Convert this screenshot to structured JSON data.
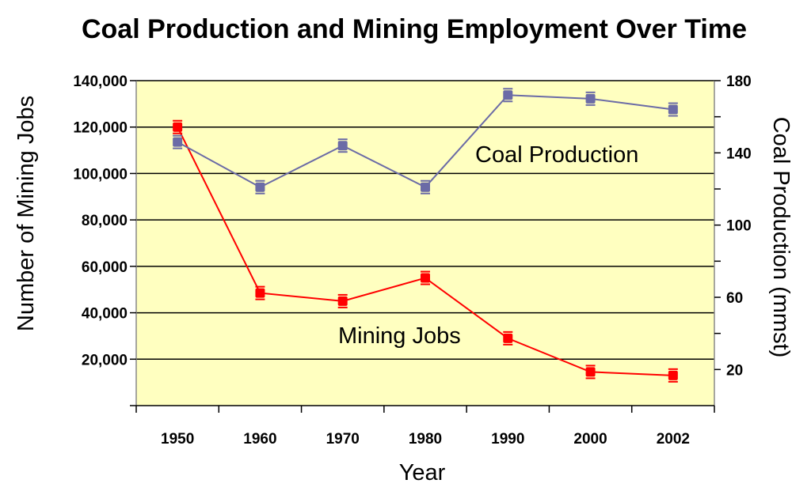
{
  "chart_data": {
    "type": "line",
    "title": "Coal Production and Mining Employment Over Time",
    "xlabel": "Year",
    "ylabel": "Number of Mining Jobs",
    "y2label": "Coal Production (mmst)",
    "categories": [
      "1950",
      "1960",
      "1970",
      "1980",
      "1990",
      "2000",
      "2002"
    ],
    "ylim": [
      0,
      140000
    ],
    "y2lim": [
      0,
      180
    ],
    "y_ticks": [
      "20,000",
      "40,000",
      "60,000",
      "80,000",
      "100,000",
      "120,000",
      "140,000"
    ],
    "y_tick_values": [
      20000,
      40000,
      60000,
      80000,
      100000,
      120000,
      140000
    ],
    "y2_ticks": [
      "20",
      "60",
      "100",
      "140",
      "180"
    ],
    "y2_tick_values": [
      20,
      60,
      100,
      140,
      180
    ],
    "grid": true,
    "plot_background": "#FFFFC0",
    "series": [
      {
        "name": "Mining Jobs",
        "axis": "left",
        "color": "#FF0000",
        "values": [
          120000,
          48500,
          45000,
          55000,
          29000,
          14500,
          13000
        ]
      },
      {
        "name": "Coal Production",
        "axis": "right",
        "color": "#6B6BA6",
        "values": [
          146,
          121,
          144,
          121,
          172,
          170,
          164
        ]
      }
    ],
    "annotations": [
      {
        "text": "Coal Production",
        "series": "Coal Production"
      },
      {
        "text": "Mining Jobs",
        "series": "Mining Jobs"
      }
    ]
  }
}
